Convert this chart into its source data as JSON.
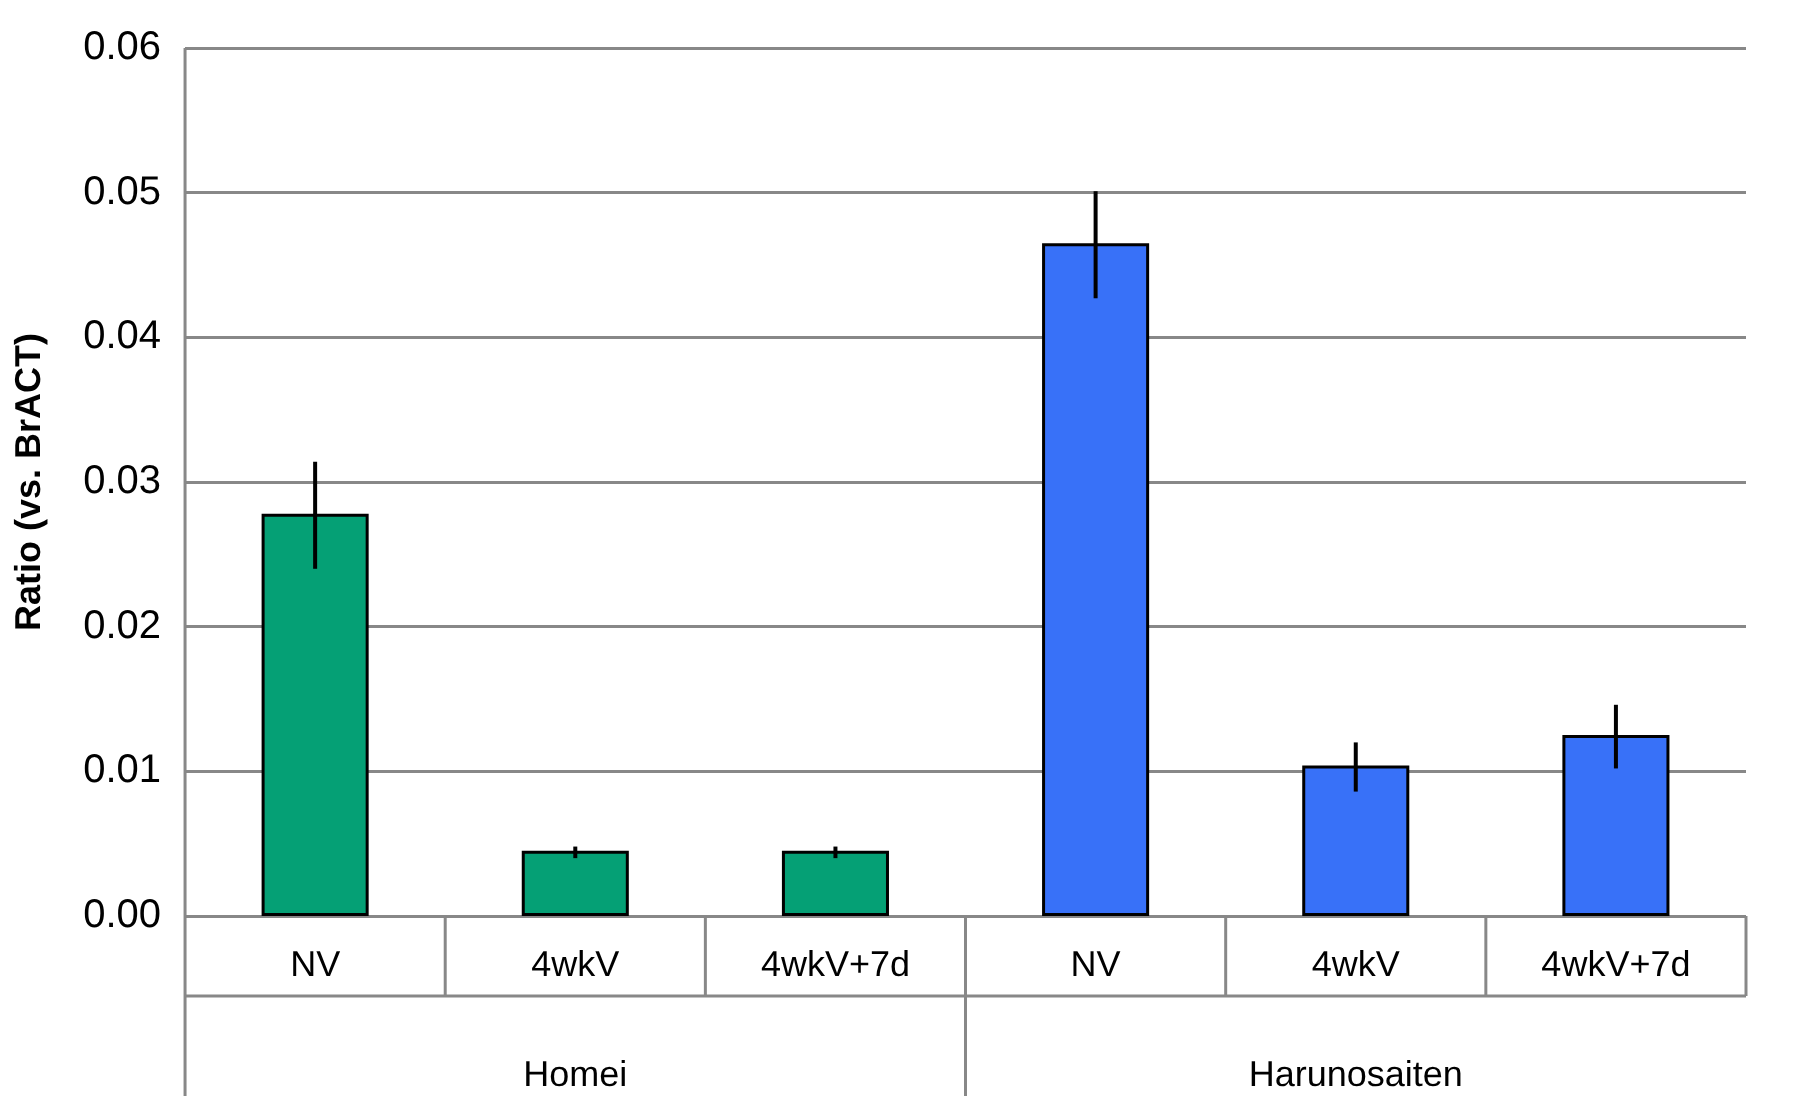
{
  "chart_data": {
    "type": "bar",
    "ylabel": "Ratio (vs. BrACT)",
    "categories": [
      "NV",
      "4wkV",
      "4wkV+7d",
      "NV",
      "4wkV",
      "4wkV+7d"
    ],
    "values": [
      0.0277,
      0.0044,
      0.0044,
      0.0464,
      0.0103,
      0.0124
    ],
    "errors": [
      0.0037,
      0.0004,
      0.0004,
      0.0037,
      0.0017,
      0.0022
    ],
    "colors": [
      "#05a075",
      "#05a075",
      "#05a075",
      "#3871f8",
      "#3871f8",
      "#3871f8"
    ],
    "annotations": [
      "Homei",
      "Harunosaiten"
    ],
    "ylim": [
      0,
      0.06
    ],
    "yticks": [
      {
        "value": 0,
        "label": "0.00"
      },
      {
        "value": 0.01,
        "label": "0.01"
      },
      {
        "value": 0.02,
        "label": "0.02"
      },
      {
        "value": 0.03,
        "label": "0.03"
      },
      {
        "value": 0.04,
        "label": "0.04"
      },
      {
        "value": 0.05,
        "label": "0.05"
      },
      {
        "value": 0.06,
        "label": "0.06"
      }
    ],
    "grid": "y",
    "legend": false
  }
}
